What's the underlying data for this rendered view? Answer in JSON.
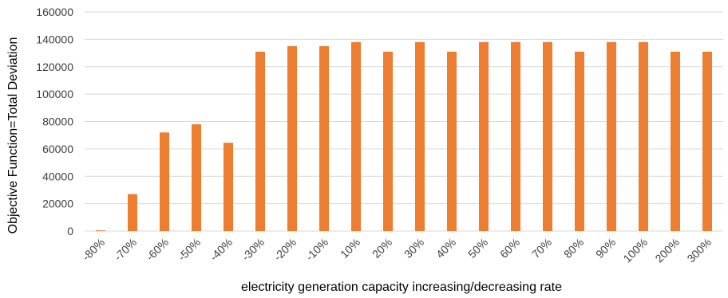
{
  "chart_data": {
    "type": "bar",
    "title": "",
    "xlabel": "electricity generation capacity increasing/decreasing rate",
    "ylabel": "Objective Function=Total Deviation",
    "ylim": [
      0,
      160000
    ],
    "yticks": [
      "0",
      "20000",
      "40000",
      "60000",
      "80000",
      "100000",
      "120000",
      "140000",
      "160000"
    ],
    "grid": true,
    "legend": "none",
    "bar_color": "#ED7D31",
    "categories": [
      "-80%",
      "-70%",
      "-60%",
      "-50%",
      "-40%",
      "-30%",
      "-20%",
      "-10%",
      "10%",
      "20%",
      "30%",
      "40%",
      "50%",
      "60%",
      "70%",
      "80%",
      "90%",
      "100%",
      "200%",
      "300%"
    ],
    "values": [
      500,
      27000,
      72000,
      78000,
      64500,
      131000,
      135000,
      135000,
      138000,
      131000,
      138000,
      131000,
      138000,
      138000,
      138000,
      131000,
      138000,
      138000,
      131000,
      131000
    ]
  }
}
